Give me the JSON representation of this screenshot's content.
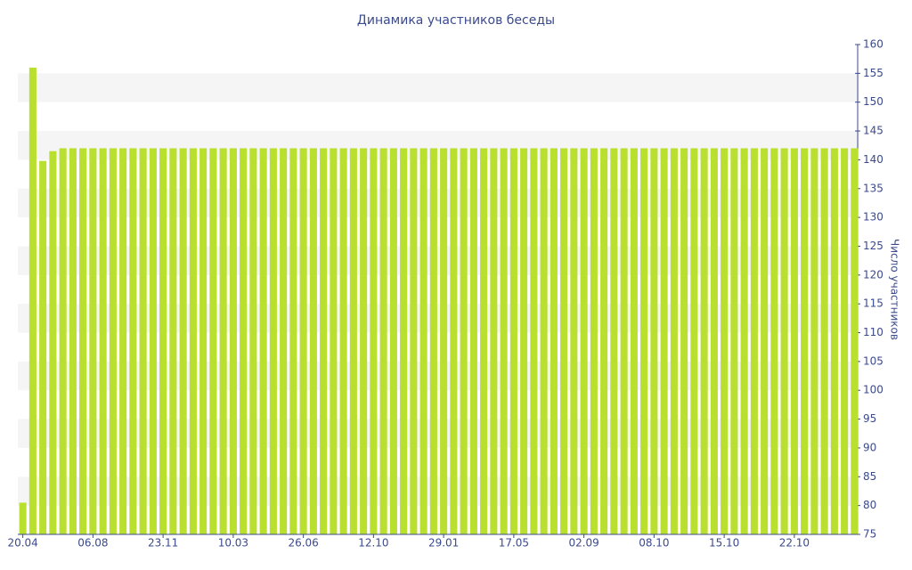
{
  "chart_data": {
    "type": "bar",
    "title": "Динамика участников беседы",
    "y_label": "Число участников",
    "categories": [
      "20.04",
      null,
      null,
      null,
      null,
      null,
      null,
      "06.08",
      null,
      null,
      null,
      null,
      null,
      null,
      "23.11",
      null,
      null,
      null,
      null,
      null,
      null,
      "10.03",
      null,
      null,
      null,
      null,
      null,
      null,
      "26.06",
      null,
      null,
      null,
      null,
      null,
      null,
      "12.10",
      null,
      null,
      null,
      null,
      null,
      null,
      "29.01",
      null,
      null,
      null,
      null,
      null,
      null,
      "17.05",
      null,
      null,
      null,
      null,
      null,
      null,
      "02.09",
      null,
      null,
      null,
      null,
      null,
      null,
      "08.10",
      null,
      null,
      null,
      null,
      null,
      null,
      "15.10",
      null,
      null,
      null,
      null,
      null,
      null,
      "22.10",
      null,
      null,
      null,
      null,
      null,
      null
    ],
    "values": [
      80.5,
      156,
      139.8,
      141.5,
      142,
      142,
      142,
      142,
      142,
      142,
      142,
      142,
      142,
      142,
      142,
      142,
      142,
      142,
      142,
      142,
      142,
      142,
      142,
      142,
      142,
      142,
      142,
      142,
      142,
      142,
      142,
      142,
      142,
      142,
      142,
      142,
      142,
      142,
      142,
      142,
      142,
      142,
      142,
      142,
      142,
      142,
      142,
      142,
      142,
      142,
      142,
      142,
      142,
      142,
      142,
      142,
      142,
      142,
      142,
      142,
      142,
      142,
      142,
      142,
      142,
      142,
      142,
      142,
      142,
      142,
      142,
      142,
      142,
      142,
      142,
      142,
      142,
      142,
      142,
      142,
      142,
      142,
      142,
      142
    ],
    "color": "#b9e02e",
    "ylim": [
      75,
      160
    ],
    "yticks": [
      75,
      80,
      85,
      90,
      95,
      100,
      105,
      110,
      115,
      120,
      125,
      130,
      135,
      140,
      145,
      150,
      155,
      160
    ],
    "y_axis_side": "right",
    "grid_bands": true
  }
}
